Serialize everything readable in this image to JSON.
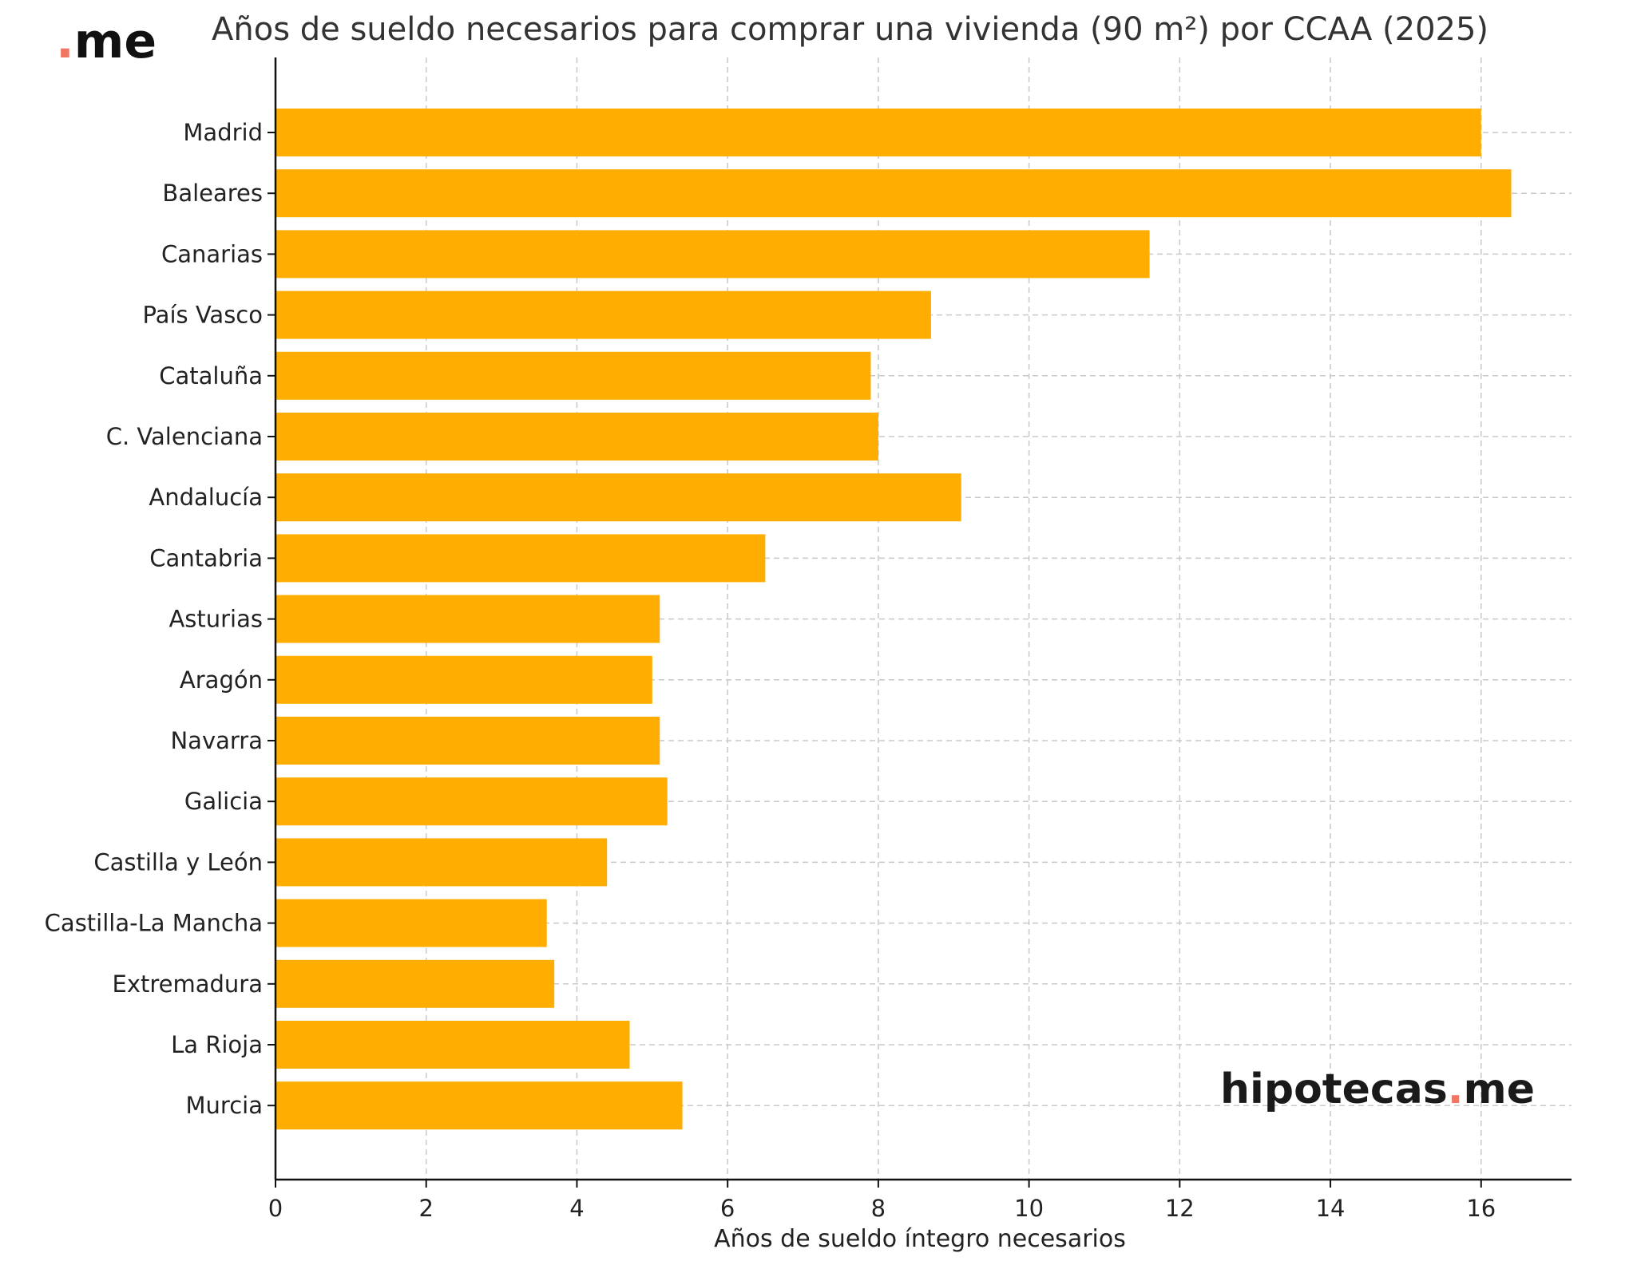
{
  "logo_small": {
    "dot": ".",
    "text": "me"
  },
  "watermark": {
    "brand": "hipotecas",
    "dot": ".",
    "tld": "me"
  },
  "colors": {
    "bar": "#FFAD00",
    "grid": "#c8c8c8",
    "axis": "#111111",
    "dot": "#f07563"
  },
  "chart_data": {
    "type": "bar",
    "orientation": "horizontal",
    "title": "Años de sueldo necesarios para comprar una vivienda (90 m²) por CCAA (2025)",
    "xlabel": "Años de sueldo íntegro necesarios",
    "ylabel": "",
    "xlim": [
      0,
      17.2
    ],
    "xticks": [
      0,
      2,
      4,
      6,
      8,
      10,
      12,
      14,
      16
    ],
    "grid": true,
    "categories": [
      "Madrid",
      "Baleares",
      "Canarias",
      "País Vasco",
      "Cataluña",
      "C. Valenciana",
      "Andalucía",
      "Cantabria",
      "Asturias",
      "Aragón",
      "Navarra",
      "Galicia",
      "Castilla y León",
      "Castilla-La Mancha",
      "Extremadura",
      "La Rioja",
      "Murcia"
    ],
    "values": [
      16.0,
      16.4,
      11.6,
      8.7,
      7.9,
      8.0,
      9.1,
      6.5,
      5.1,
      5.0,
      5.1,
      5.2,
      4.4,
      3.6,
      3.7,
      4.7,
      5.4
    ]
  }
}
